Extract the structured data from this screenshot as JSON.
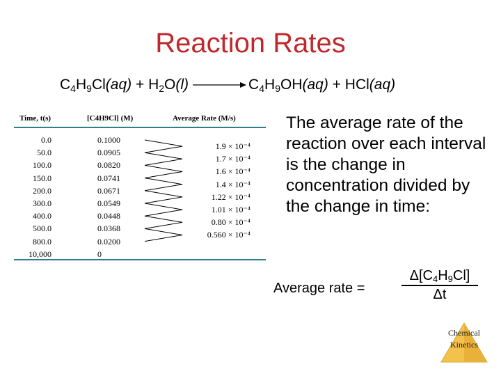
{
  "title": "Reaction Rates",
  "equation": {
    "r1_pre": "C",
    "r1_s1": "4",
    "r1_mid": "H",
    "r1_s2": "9",
    "r1_post": "Cl",
    "r1_state": "(aq)",
    "plus1": " + ",
    "r2_pre": "H",
    "r2_s1": "2",
    "r2_post": "O",
    "r2_state": "(l)",
    "p1_pre": "C",
    "p1_s1": "4",
    "p1_mid": "H",
    "p1_s2": "9",
    "p1_post": "OH",
    "p1_state": "(aq)",
    "plus2": " + ",
    "p2": "HCl",
    "p2_state": "(aq)"
  },
  "table": {
    "headers": {
      "time": "Time, t(s)",
      "conc": "[C4H9Cl] (M)",
      "rate": "Average Rate (M/s)"
    },
    "time": [
      "0.0",
      "50.0",
      "100.0",
      "150.0",
      "200.0",
      "300.0",
      "400.0",
      "500.0",
      "800.0",
      "10,000"
    ],
    "conc": [
      "0.1000",
      "0.0905",
      "0.0820",
      "0.0741",
      "0.0671",
      "0.0549",
      "0.0448",
      "0.0368",
      "0.0200",
      "0"
    ],
    "rate": [
      "1.9 × 10⁻⁴",
      "1.7 × 10⁻⁴",
      "1.6 × 10⁻⁴",
      "1.4 × 10⁻⁴",
      "1.22 × 10⁻⁴",
      "1.01 × 10⁻⁴",
      "0.80 × 10⁻⁴",
      "0.560 × 10⁻⁴"
    ]
  },
  "explanation": "The average rate of the reaction over each interval is the change in concentration divided by the change in time:",
  "average_rate": {
    "label": "Average rate =",
    "num_pre": "Δ[C",
    "num_s1": "4",
    "num_mid": "H",
    "num_s2": "9",
    "num_post": "Cl]",
    "den": "Δt"
  },
  "logo": {
    "line1": "Chemical",
    "line2": "Kinetics"
  },
  "colors": {
    "title": "#c0282d",
    "table_rule": "#2f7f87",
    "logo_fill": "#f2c24a"
  }
}
